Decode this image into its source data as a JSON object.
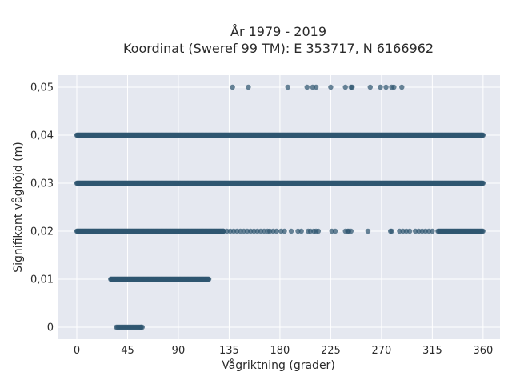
{
  "chart_data": {
    "type": "scatter",
    "title": "År 1979 - 2019",
    "subtitle": "Koordinat (Sweref 99 TM): E 353717, N 6166962",
    "xlabel": "Vågriktning (grader)",
    "ylabel": "Signifikant våghöjd (m)",
    "xlim": [
      -17,
      375
    ],
    "ylim": [
      -0.0025,
      0.0525
    ],
    "xticks": [
      0,
      45,
      90,
      135,
      180,
      225,
      270,
      315,
      360
    ],
    "xtick_labels": [
      "0",
      "45",
      "90",
      "135",
      "180",
      "225",
      "270",
      "315",
      "360"
    ],
    "yticks": [
      0,
      0.01,
      0.02,
      0.03,
      0.04,
      0.05
    ],
    "ytick_labels": [
      "0",
      "0,01",
      "0,02",
      "0,03",
      "0,04",
      "0,05"
    ],
    "grid": true,
    "legend": "none",
    "colors": {
      "point": "#2f5670",
      "plot_bg": "#e5e8f0",
      "grid": "#ffffff"
    },
    "series": [
      {
        "segments": [
          {
            "y": 0.0,
            "x_start": 35,
            "x_end": 58,
            "step": 1
          },
          {
            "y": 0.01,
            "x_start": 30,
            "x_end": 117,
            "step": 0.5
          },
          {
            "y": 0.02,
            "x_start": 0,
            "x_end": 130,
            "step": 0.5
          },
          {
            "y": 0.02,
            "x_start": 320,
            "x_end": 360,
            "step": 0.7
          },
          {
            "y": 0.03,
            "x_start": 0,
            "x_end": 360,
            "step": 0.5
          },
          {
            "y": 0.04,
            "x_start": 0,
            "x_end": 360,
            "step": 0.5
          }
        ],
        "points": [
          {
            "x": 130,
            "y": 0.02
          },
          {
            "x": 133,
            "y": 0.02
          },
          {
            "x": 136,
            "y": 0.02
          },
          {
            "x": 139,
            "y": 0.02
          },
          {
            "x": 142,
            "y": 0.02
          },
          {
            "x": 145,
            "y": 0.02
          },
          {
            "x": 148,
            "y": 0.02
          },
          {
            "x": 151,
            "y": 0.02
          },
          {
            "x": 154,
            "y": 0.02
          },
          {
            "x": 157,
            "y": 0.02
          },
          {
            "x": 160,
            "y": 0.02
          },
          {
            "x": 163,
            "y": 0.02
          },
          {
            "x": 166,
            "y": 0.02
          },
          {
            "x": 169,
            "y": 0.02
          },
          {
            "x": 171,
            "y": 0.02
          },
          {
            "x": 174,
            "y": 0.02
          },
          {
            "x": 177,
            "y": 0.02
          },
          {
            "x": 181,
            "y": 0.02
          },
          {
            "x": 184,
            "y": 0.02
          },
          {
            "x": 190,
            "y": 0.02
          },
          {
            "x": 196,
            "y": 0.02
          },
          {
            "x": 199,
            "y": 0.02
          },
          {
            "x": 205,
            "y": 0.02
          },
          {
            "x": 207,
            "y": 0.02
          },
          {
            "x": 210,
            "y": 0.02
          },
          {
            "x": 212,
            "y": 0.02
          },
          {
            "x": 214,
            "y": 0.02
          },
          {
            "x": 226,
            "y": 0.02
          },
          {
            "x": 229,
            "y": 0.02
          },
          {
            "x": 238,
            "y": 0.02
          },
          {
            "x": 240,
            "y": 0.02
          },
          {
            "x": 241,
            "y": 0.02
          },
          {
            "x": 243,
            "y": 0.02
          },
          {
            "x": 258,
            "y": 0.02
          },
          {
            "x": 278,
            "y": 0.02
          },
          {
            "x": 279,
            "y": 0.02
          },
          {
            "x": 286,
            "y": 0.02
          },
          {
            "x": 289,
            "y": 0.02
          },
          {
            "x": 292,
            "y": 0.02
          },
          {
            "x": 295,
            "y": 0.02
          },
          {
            "x": 300,
            "y": 0.02
          },
          {
            "x": 303,
            "y": 0.02
          },
          {
            "x": 306,
            "y": 0.02
          },
          {
            "x": 309,
            "y": 0.02
          },
          {
            "x": 312,
            "y": 0.02
          },
          {
            "x": 315,
            "y": 0.02
          },
          {
            "x": 138,
            "y": 0.05
          },
          {
            "x": 152,
            "y": 0.05
          },
          {
            "x": 187,
            "y": 0.05
          },
          {
            "x": 204,
            "y": 0.05
          },
          {
            "x": 209,
            "y": 0.05
          },
          {
            "x": 212,
            "y": 0.05
          },
          {
            "x": 225,
            "y": 0.05
          },
          {
            "x": 238,
            "y": 0.05
          },
          {
            "x": 243,
            "y": 0.05
          },
          {
            "x": 244,
            "y": 0.05
          },
          {
            "x": 260,
            "y": 0.05
          },
          {
            "x": 269,
            "y": 0.05
          },
          {
            "x": 274,
            "y": 0.05
          },
          {
            "x": 279,
            "y": 0.05
          },
          {
            "x": 281,
            "y": 0.05
          },
          {
            "x": 288,
            "y": 0.05
          },
          {
            "x": 57,
            "y": 0.0
          }
        ]
      }
    ]
  }
}
